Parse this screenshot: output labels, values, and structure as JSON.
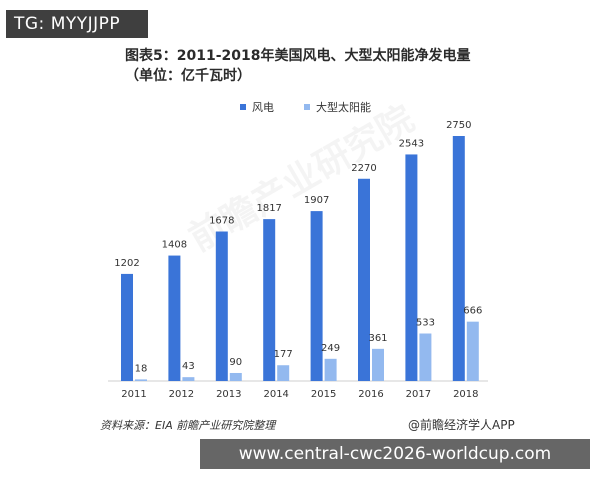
{
  "badge": {
    "text": "TG: MYYJJPP"
  },
  "chart_data": {
    "type": "bar",
    "title": "图表5：2011-2018年美国风电、大型太阳能净发电量（单位：亿千瓦时）",
    "categories": [
      "2011",
      "2012",
      "2013",
      "2014",
      "2015",
      "2016",
      "2017",
      "2018"
    ],
    "series": [
      {
        "name": "风电",
        "color": "#3a74d8",
        "values": [
          1202,
          1408,
          1678,
          1817,
          1907,
          2270,
          2543,
          2750
        ]
      },
      {
        "name": "大型太阳能",
        "color": "#93b9ef",
        "values": [
          18,
          43,
          90,
          177,
          249,
          361,
          533,
          666
        ]
      }
    ],
    "ylim": [
      0,
      2750
    ],
    "grid": false,
    "legend_position": "top"
  },
  "source": "资料来源：EIA 前瞻产业研究院整理",
  "brand": "@前瞻经济学人APP",
  "url_banner": "www.central-cwc2026-worldcup.com",
  "watermark": "前瞻产业研究院"
}
